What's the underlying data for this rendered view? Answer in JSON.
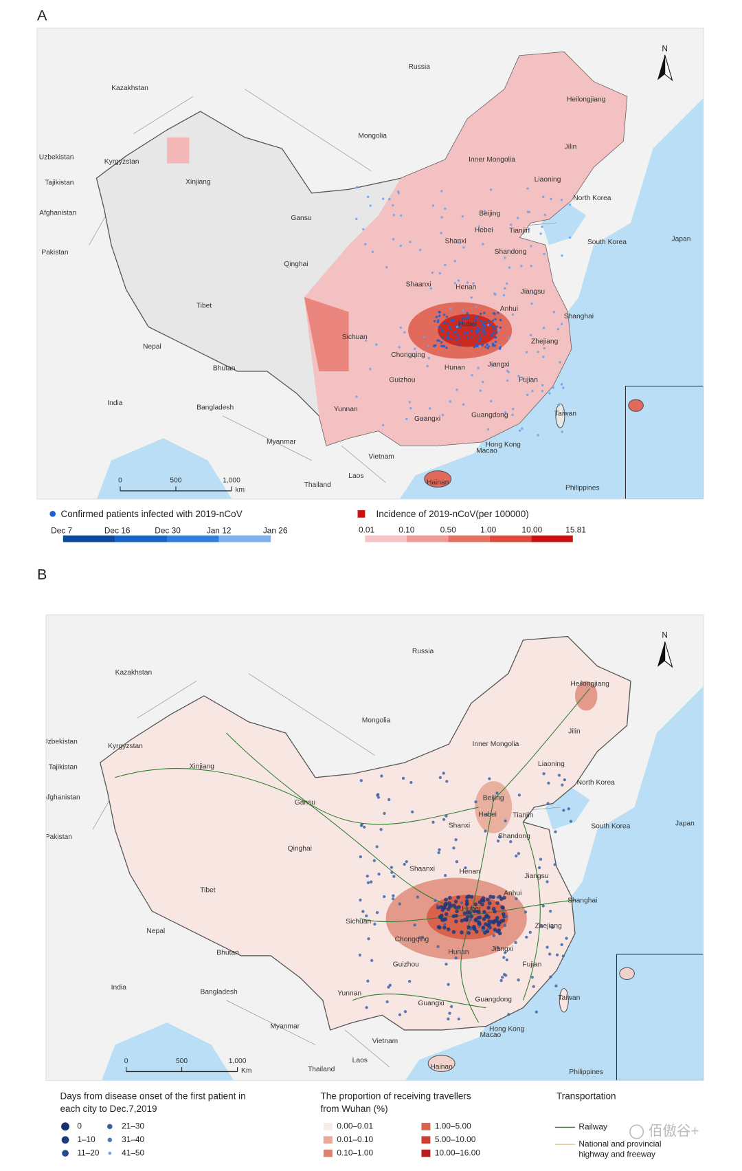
{
  "panel_a": {
    "letter": "A",
    "north": "N",
    "scale_bar": {
      "ticks": [
        "0",
        "500",
        "1,000"
      ],
      "unit": "km"
    },
    "legend_patients": {
      "title": "Confirmed patients infected with 2019-nCoV",
      "dates": [
        "Dec 7",
        "Dec 16",
        "Dec 30",
        "Jan 12",
        "Jan 26"
      ]
    },
    "legend_incidence": {
      "title": "Incidence of 2019-nCoV(per 100000)",
      "breaks": [
        "0.01",
        "0.10",
        "0.50",
        "1.00",
        "10.00",
        "15.81"
      ]
    }
  },
  "panel_b": {
    "letter": "B",
    "north": "N",
    "scale_bar": {
      "ticks": [
        "0",
        "500",
        "1,000"
      ],
      "unit": "Km"
    },
    "legend_days": {
      "title": [
        "Days from disease onset of the first patient in",
        "each city to  Dec.7,2019"
      ],
      "items": [
        "0",
        "1–10",
        "11–20",
        "21–30",
        "31–40",
        "41–50"
      ]
    },
    "legend_travellers": {
      "title": [
        "The proportion of receiving travellers",
        "from Wuhan (%)"
      ],
      "items": [
        "0.00–0.01",
        "0.01–0.10",
        "0.10–1.00",
        "1.00–5.00",
        "5.00–10.00",
        "10.00–16.00"
      ]
    },
    "legend_transport": {
      "title": "Transportation",
      "items": [
        "Railway",
        [
          "National and provincial",
          "highway and freeway"
        ]
      ]
    }
  },
  "map_labels": [
    "Russia",
    "Kazakhstan",
    "Mongolia",
    "Uzbekistan",
    "Kyrgyzstan",
    "Tajikistan",
    "Afghanistan",
    "Pakistan",
    "Nepal",
    "Bhutan",
    "India",
    "Bangladesh",
    "Myanmar",
    "Thailand",
    "Laos",
    "Vietnam",
    "Philippines",
    "North Korea",
    "South Korea",
    "Japan",
    "Heilongjiang",
    "Jilin",
    "Liaoning",
    "Inner Mongolia",
    "Xinjiang",
    "Gansu",
    "Qinghai",
    "Tibet",
    "Beijing",
    "Tianjin",
    "Hebei",
    "Shanxi",
    "Shandong",
    "Shaanxi",
    "Henan",
    "Jiangsu",
    "Anhui",
    "Shanghai",
    "Hubei",
    "Sichuan",
    "Chongqing",
    "Zhejiang",
    "Hunan",
    "Jiangxi",
    "Guizhou",
    "Fujian",
    "Yunnan",
    "Guangxi",
    "Guangdong",
    "Taiwan",
    "Hong Kong",
    "Macao",
    "Hainan"
  ],
  "watermark": "佰傲谷+"
}
